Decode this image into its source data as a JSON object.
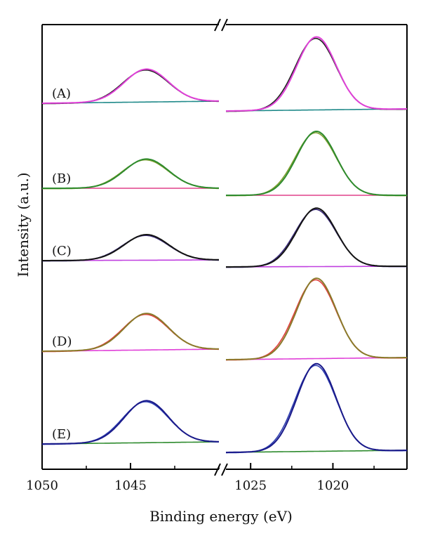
{
  "chart_data": {
    "type": "line",
    "title": "",
    "xlabel": "Binding energy (eV)",
    "ylabel": "Intensity (a.u.)",
    "x_axis_reversed": true,
    "x_axis_break": true,
    "left_xlim": [
      1050,
      1040
    ],
    "right_xlim": [
      1026.5,
      1015.5
    ],
    "xticks_left": [
      1050,
      1045
    ],
    "xticks_right": [
      1025,
      1020
    ],
    "xtick_labels_left": [
      "1050",
      "1045"
    ],
    "xtick_labels_right": [
      "1025",
      "1020"
    ],
    "y_ticks": "none",
    "grid": false,
    "panels": [
      {
        "label": "(A)",
        "fit_color": "#e040d8",
        "data_color": "#222222",
        "baseline_color": "#208a8a",
        "peaks": [
          {
            "center": 1044.1,
            "height": 0.36,
            "width": 1.25
          },
          {
            "center": 1021.0,
            "height": 0.8,
            "width": 1.2
          }
        ]
      },
      {
        "label": "(B)",
        "fit_color": "#2e8b2e",
        "data_color": "#7f9f2f",
        "baseline_color": "#e0408a",
        "peaks": [
          {
            "center": 1044.1,
            "height": 0.32,
            "width": 1.25
          },
          {
            "center": 1021.0,
            "height": 0.7,
            "width": 1.2
          }
        ]
      },
      {
        "label": "(C)",
        "fit_color": "#141414",
        "data_color": "#3a2a7a",
        "baseline_color": "#c040e0",
        "peaks": [
          {
            "center": 1044.1,
            "height": 0.28,
            "width": 1.25
          },
          {
            "center": 1021.0,
            "height": 0.64,
            "width": 1.2
          }
        ]
      },
      {
        "label": "(D)",
        "fit_color": "#8a7a2a",
        "data_color": "#e04040",
        "baseline_color": "#e040d8",
        "peaks": [
          {
            "center": 1044.1,
            "height": 0.4,
            "width": 1.25
          },
          {
            "center": 1021.0,
            "height": 0.88,
            "width": 1.2
          }
        ]
      },
      {
        "label": "(E)",
        "fit_color": "#1a1a8a",
        "data_color": "#3040b0",
        "baseline_color": "#2e8b2e",
        "peaks": [
          {
            "center": 1044.1,
            "height": 0.46,
            "width": 1.25
          },
          {
            "center": 1021.0,
            "height": 0.96,
            "width": 1.2
          }
        ]
      }
    ]
  }
}
